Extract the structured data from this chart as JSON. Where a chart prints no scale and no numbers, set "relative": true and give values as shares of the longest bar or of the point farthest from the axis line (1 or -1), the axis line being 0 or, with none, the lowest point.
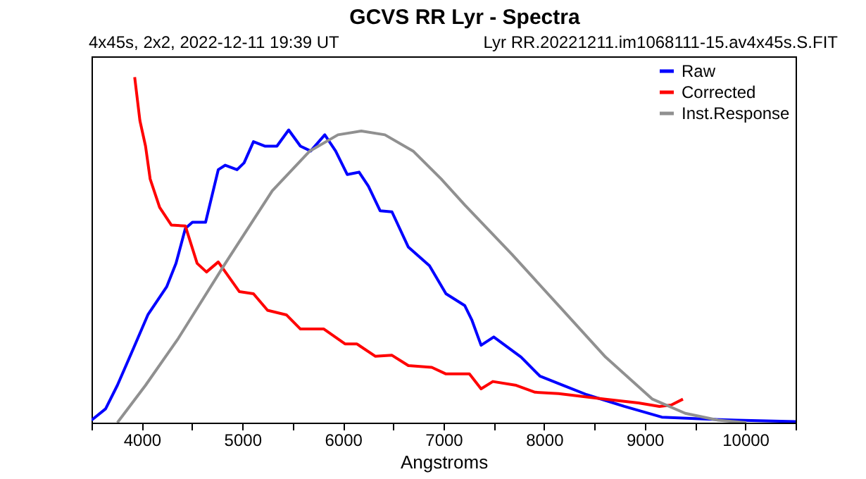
{
  "chart_data": {
    "type": "line",
    "title": "GCVS RR Lyr - Spectra",
    "subtitle": "4x45s, 2x2, 2022-12-11 19:39 UT",
    "annotations": [
      "Lyr  RR.20221211.im1068111-15.av4x45s.S.FIT"
    ],
    "xlabel": "Angstroms",
    "relative": true,
    "xlim": [
      3500,
      10500
    ],
    "xticks": [
      {
        "value": 3500,
        "label": null
      },
      4000,
      {
        "value": 4500,
        "label": null
      },
      5000,
      {
        "value": 5500,
        "label": null
      },
      6000,
      {
        "value": 6500,
        "label": null
      },
      7000,
      {
        "value": 7500,
        "label": null
      },
      8000,
      {
        "value": 8500,
        "label": null
      },
      9000,
      {
        "value": 9500,
        "label": null
      },
      10000,
      {
        "value": 10500,
        "label": null
      }
    ],
    "legend": "top right",
    "grid": false,
    "marker": "none",
    "line_style": "solid",
    "series": [
      {
        "name": "Raw",
        "color": "#0000ff",
        "x": [
          3500,
          3640,
          3757,
          3920,
          4060,
          4247,
          4340,
          4433,
          4503,
          4634,
          4760,
          4830,
          4947,
          5017,
          5110,
          5227,
          5343,
          5460,
          5577,
          5679,
          5819,
          5927,
          6043,
          6160,
          6253,
          6370,
          6487,
          6650,
          6860,
          7024,
          7210,
          7280,
          7373,
          7499,
          7770,
          7957,
          8190,
          8423,
          8797,
          9170,
          9543,
          9917,
          10500
        ],
        "values": [
          0.007,
          0.04,
          0.108,
          0.217,
          0.312,
          0.393,
          0.461,
          0.562,
          0.58,
          0.58,
          0.732,
          0.745,
          0.732,
          0.752,
          0.813,
          0.8,
          0.8,
          0.847,
          0.8,
          0.786,
          0.833,
          0.786,
          0.718,
          0.725,
          0.684,
          0.613,
          0.61,
          0.508,
          0.454,
          0.373,
          0.339,
          0.298,
          0.224,
          0.248,
          0.19,
          0.135,
          0.108,
          0.081,
          0.047,
          0.016,
          0.011,
          0.007,
          0.003
        ]
      },
      {
        "name": "Corrected",
        "color": "#ff0000",
        "x": [
          3929,
          3981,
          4037,
          4083,
          4177,
          4293,
          4433,
          4550,
          4643,
          4760,
          4970,
          5110,
          5250,
          5437,
          5577,
          5810,
          6020,
          6137,
          6323,
          6487,
          6650,
          6883,
          7024,
          7257,
          7373,
          7490,
          7723,
          7910,
          8143,
          8610,
          8937,
          9147,
          9263,
          9380
        ],
        "values": [
          1.0,
          0.874,
          0.8,
          0.705,
          0.623,
          0.572,
          0.569,
          0.461,
          0.436,
          0.465,
          0.379,
          0.373,
          0.325,
          0.312,
          0.271,
          0.271,
          0.228,
          0.228,
          0.192,
          0.195,
          0.165,
          0.16,
          0.141,
          0.141,
          0.098,
          0.119,
          0.108,
          0.088,
          0.084,
          0.068,
          0.057,
          0.047,
          0.051,
          0.068
        ]
      },
      {
        "name": "Inst.Response",
        "color": "#909090",
        "x": [
          3757,
          4037,
          4363,
          4830,
          5297,
          5670,
          5950,
          6183,
          6417,
          6697,
          6977,
          7210,
          7677,
          8143,
          8610,
          9077,
          9403,
          9730,
          10010
        ],
        "values": [
          0,
          0.108,
          0.244,
          0.461,
          0.671,
          0.786,
          0.833,
          0.844,
          0.833,
          0.786,
          0.705,
          0.63,
          0.488,
          0.339,
          0.19,
          0.068,
          0.027,
          0.007,
          0
        ]
      }
    ]
  }
}
